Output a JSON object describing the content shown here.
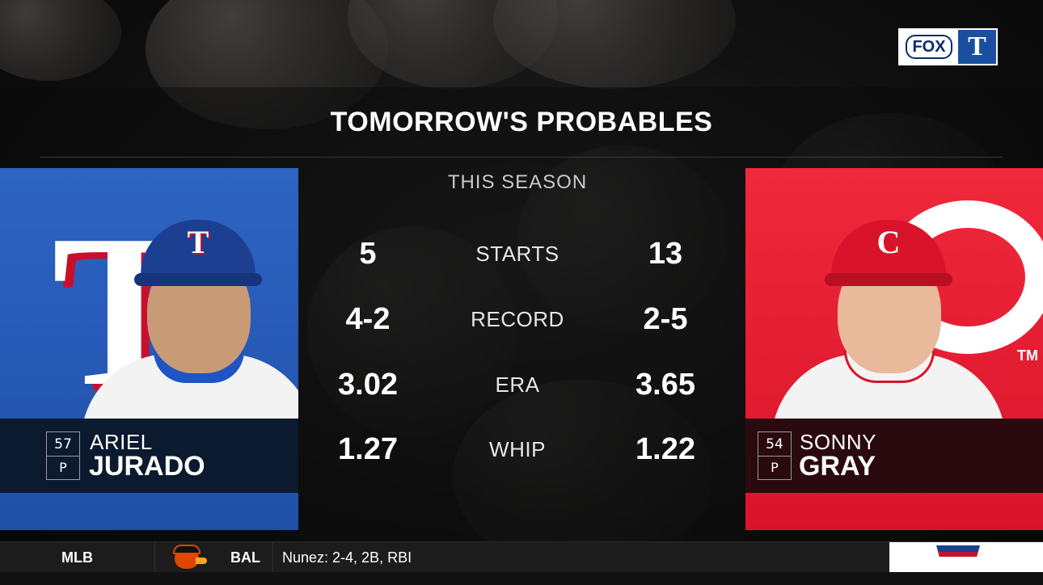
{
  "broadcast": {
    "network_logo": "FOX",
    "team_logo_letter": "T"
  },
  "title": "TOMORROW'S PROBABLES",
  "section_label": "THIS SEASON",
  "left_player": {
    "number": "57",
    "position": "P",
    "first_name": "ARIEL",
    "last_name": "JURADO",
    "team_logo_letter": "T",
    "cap_letter": "T",
    "team_color": "#2e64c3"
  },
  "right_player": {
    "number": "54",
    "position": "P",
    "first_name": "SONNY",
    "last_name": "GRAY",
    "cap_letter": "C",
    "trademark": "TM",
    "team_color": "#f0283c"
  },
  "stats": [
    {
      "label": "STARTS",
      "left": "5",
      "right": "13"
    },
    {
      "label": "RECORD",
      "left": "4-2",
      "right": "2-5"
    },
    {
      "label": "ERA",
      "left": "3.02",
      "right": "3.65"
    },
    {
      "label": "WHIP",
      "left": "1.27",
      "right": "1.22"
    }
  ],
  "ticker": {
    "league": "MLB",
    "team_icon": "orioles-bird-icon",
    "team": "BAL",
    "text": "Nunez: 2-4, 2B, RBI"
  }
}
